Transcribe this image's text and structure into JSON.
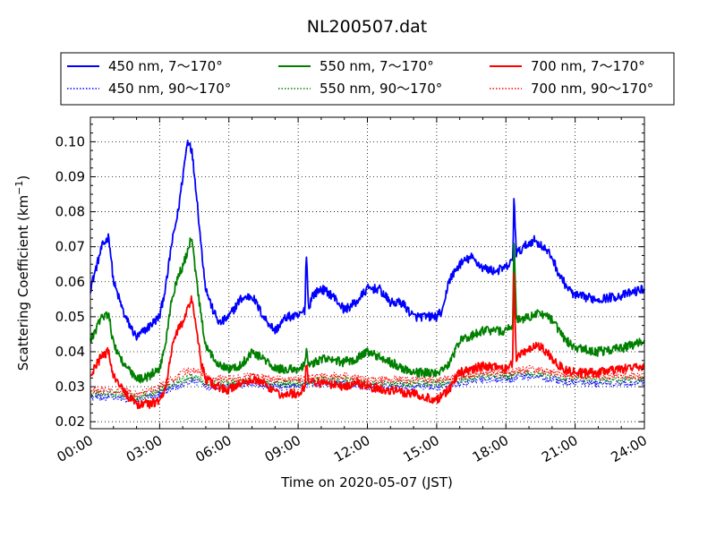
{
  "chart_data": {
    "type": "line",
    "title": "NL200507.dat",
    "xlabel": "Time on 2020-05-07 (JST)",
    "ylabel": "Scattering Coefficient (km",
    "ylabel_unit_sup": "−1",
    "ylabel_close": ")",
    "xlim": [
      0,
      24
    ],
    "ylim": [
      0.018,
      0.107
    ],
    "x_ticks": [
      0,
      3,
      6,
      9,
      12,
      15,
      18,
      21,
      24
    ],
    "x_tick_labels": [
      "00:00",
      "03:00",
      "06:00",
      "09:00",
      "12:00",
      "15:00",
      "18:00",
      "21:00",
      "24:00"
    ],
    "y_ticks": [
      0.02,
      0.03,
      0.04,
      0.05,
      0.06,
      0.07,
      0.08,
      0.09,
      0.1
    ],
    "y_tick_labels": [
      "0.02",
      "0.03",
      "0.04",
      "0.05",
      "0.06",
      "0.07",
      "0.08",
      "0.09",
      "0.10"
    ],
    "grid": true,
    "legend_position": "top",
    "series": [
      {
        "name": "450 nm, 7～170°",
        "color": "#0000ff",
        "style": "solid",
        "x": [
          0,
          0.5,
          0.8,
          1.0,
          1.5,
          2.0,
          2.5,
          3.0,
          3.3,
          3.5,
          3.8,
          4.0,
          4.2,
          4.3,
          4.4,
          4.6,
          4.8,
          5.0,
          5.3,
          5.6,
          6.0,
          6.5,
          7.0,
          7.5,
          8.0,
          8.5,
          9.0,
          9.3,
          9.35,
          9.45,
          9.6,
          10,
          10.5,
          11,
          11.5,
          12,
          12.5,
          13,
          13.5,
          14,
          14.5,
          15,
          15.3,
          15.5,
          16,
          16.5,
          17,
          17.5,
          18,
          18.3,
          18.35,
          18.45,
          18.8,
          19.2,
          19.6,
          20,
          20.3,
          20.7,
          21,
          22,
          23,
          24
        ],
        "values": [
          0.058,
          0.07,
          0.073,
          0.06,
          0.05,
          0.044,
          0.047,
          0.05,
          0.06,
          0.07,
          0.08,
          0.09,
          0.1,
          0.1,
          0.097,
          0.085,
          0.07,
          0.058,
          0.052,
          0.048,
          0.05,
          0.055,
          0.056,
          0.05,
          0.046,
          0.05,
          0.05,
          0.052,
          0.07,
          0.052,
          0.056,
          0.058,
          0.056,
          0.052,
          0.054,
          0.058,
          0.058,
          0.054,
          0.054,
          0.05,
          0.05,
          0.05,
          0.052,
          0.06,
          0.065,
          0.067,
          0.064,
          0.063,
          0.064,
          0.066,
          0.085,
          0.068,
          0.07,
          0.072,
          0.07,
          0.067,
          0.062,
          0.058,
          0.056,
          0.055,
          0.056,
          0.058
        ]
      },
      {
        "name": "450 nm, 90～170°",
        "color": "#0000ff",
        "style": "dotted",
        "x": [
          0,
          1,
          2,
          3,
          4,
          4.5,
          5,
          6,
          7,
          8,
          9,
          10,
          11,
          12,
          13,
          14,
          15,
          16,
          17,
          18,
          19,
          20,
          21,
          22,
          23,
          24
        ],
        "values": [
          0.027,
          0.027,
          0.026,
          0.028,
          0.031,
          0.032,
          0.03,
          0.03,
          0.031,
          0.03,
          0.03,
          0.031,
          0.031,
          0.03,
          0.03,
          0.03,
          0.03,
          0.031,
          0.032,
          0.032,
          0.033,
          0.032,
          0.031,
          0.031,
          0.031,
          0.031
        ]
      },
      {
        "name": "550 nm, 7～170°",
        "color": "#008000",
        "style": "solid",
        "x": [
          0,
          0.5,
          0.8,
          1.0,
          1.5,
          2.0,
          2.5,
          3.0,
          3.3,
          3.5,
          3.8,
          4.0,
          4.3,
          4.4,
          4.6,
          4.8,
          5.0,
          5.5,
          6.0,
          6.5,
          7.0,
          7.5,
          8.0,
          9.0,
          9.3,
          9.35,
          9.45,
          10,
          11,
          11.5,
          12,
          13,
          14,
          15,
          15.5,
          16,
          17,
          18,
          18.3,
          18.35,
          18.45,
          19,
          19.5,
          20,
          20.5,
          21,
          22,
          23,
          24
        ],
        "values": [
          0.043,
          0.05,
          0.051,
          0.042,
          0.036,
          0.032,
          0.033,
          0.035,
          0.044,
          0.054,
          0.062,
          0.064,
          0.071,
          0.072,
          0.06,
          0.05,
          0.041,
          0.037,
          0.035,
          0.036,
          0.04,
          0.038,
          0.035,
          0.035,
          0.036,
          0.041,
          0.036,
          0.038,
          0.037,
          0.038,
          0.04,
          0.037,
          0.034,
          0.034,
          0.036,
          0.043,
          0.046,
          0.046,
          0.048,
          0.072,
          0.049,
          0.05,
          0.051,
          0.049,
          0.044,
          0.041,
          0.04,
          0.041,
          0.043
        ]
      },
      {
        "name": "550 nm, 90～170°",
        "color": "#008000",
        "style": "dotted",
        "x": [
          0,
          1,
          2,
          3,
          4,
          4.5,
          5,
          6,
          7,
          8,
          9,
          10,
          11,
          12,
          13,
          14,
          15,
          16,
          17,
          18,
          19,
          20,
          21,
          22,
          23,
          24
        ],
        "values": [
          0.028,
          0.028,
          0.027,
          0.029,
          0.032,
          0.033,
          0.031,
          0.031,
          0.032,
          0.031,
          0.031,
          0.032,
          0.032,
          0.031,
          0.031,
          0.031,
          0.031,
          0.032,
          0.033,
          0.033,
          0.034,
          0.033,
          0.032,
          0.032,
          0.032,
          0.032
        ]
      },
      {
        "name": "700 nm, 7～170°",
        "color": "#ff0000",
        "style": "solid",
        "x": [
          0,
          0.5,
          0.8,
          1.0,
          1.5,
          2.0,
          2.5,
          3.0,
          3.3,
          3.5,
          3.8,
          4.0,
          4.3,
          4.4,
          4.6,
          4.8,
          5.0,
          5.5,
          6.0,
          6.5,
          7.0,
          7.5,
          8.0,
          9.0,
          9.3,
          9.35,
          9.45,
          10,
          11,
          11.5,
          12,
          13,
          14,
          15,
          15.5,
          16,
          17,
          18,
          18.3,
          18.35,
          18.45,
          18.8,
          19.2,
          19.6,
          20,
          20.5,
          21,
          22,
          23,
          24
        ],
        "values": [
          0.033,
          0.039,
          0.04,
          0.033,
          0.028,
          0.025,
          0.025,
          0.026,
          0.031,
          0.04,
          0.047,
          0.048,
          0.054,
          0.055,
          0.046,
          0.037,
          0.032,
          0.03,
          0.029,
          0.031,
          0.032,
          0.031,
          0.028,
          0.028,
          0.03,
          0.037,
          0.032,
          0.031,
          0.03,
          0.031,
          0.03,
          0.029,
          0.028,
          0.026,
          0.029,
          0.034,
          0.036,
          0.035,
          0.037,
          0.063,
          0.038,
          0.04,
          0.042,
          0.041,
          0.038,
          0.035,
          0.034,
          0.034,
          0.035,
          0.036
        ]
      },
      {
        "name": "700 nm, 90～170°",
        "color": "#ff0000",
        "style": "dotted",
        "x": [
          0,
          1,
          2,
          3,
          4,
          4.5,
          5,
          6,
          7,
          8,
          9,
          10,
          11,
          12,
          13,
          14,
          15,
          16,
          17,
          18,
          19,
          20,
          21,
          22,
          23,
          24
        ],
        "values": [
          0.029,
          0.029,
          0.028,
          0.03,
          0.034,
          0.035,
          0.033,
          0.032,
          0.033,
          0.032,
          0.032,
          0.033,
          0.033,
          0.032,
          0.032,
          0.032,
          0.032,
          0.033,
          0.034,
          0.034,
          0.035,
          0.034,
          0.033,
          0.033,
          0.033,
          0.033
        ]
      }
    ]
  }
}
